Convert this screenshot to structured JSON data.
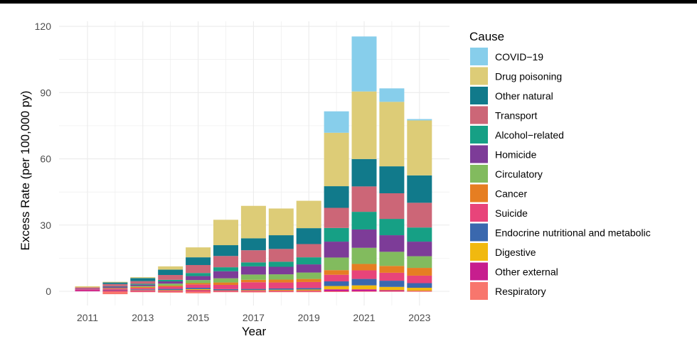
{
  "chart_data": {
    "type": "bar",
    "stacked": true,
    "title": "",
    "xlabel": "Year",
    "ylabel": "Excess Rate (per 100,000 py)",
    "ylim": [
      -4,
      122
    ],
    "yticks": [
      0,
      30,
      60,
      90,
      120
    ],
    "ytick_labels": [
      "0",
      "30",
      "60",
      "90",
      "120"
    ],
    "xlim": [
      2010.3,
      2023.9
    ],
    "xticks": [
      2011,
      2013,
      2015,
      2017,
      2019,
      2021,
      2023
    ],
    "xtick_labels": [
      "2011",
      "2013",
      "2015",
      "2017",
      "2019",
      "2021",
      "2023"
    ],
    "grid": true,
    "legend": {
      "title": "Cause",
      "position": "right"
    },
    "categories": [
      2011,
      2012,
      2013,
      2014,
      2015,
      2016,
      2017,
      2018,
      2019,
      2020,
      2021,
      2022,
      2023
    ],
    "series": [
      {
        "name": "COVID−19",
        "color": "#87CEEB",
        "values": [
          0,
          0,
          0,
          0,
          0,
          0,
          0,
          0,
          0,
          9.7,
          24.9,
          6.1,
          0.6
        ]
      },
      {
        "name": "Drug poisoning",
        "color": "#DDCC77",
        "values": [
          0.5,
          0.3,
          0.4,
          1.5,
          4.5,
          11.5,
          14.7,
          12.1,
          12.4,
          24.2,
          30.6,
          29.2,
          24.9
        ]
      },
      {
        "name": "Other natural",
        "color": "#117A8B",
        "values": [
          0,
          0.7,
          1.4,
          2.4,
          3.5,
          4.9,
          5.4,
          6.2,
          7.2,
          9.8,
          12.4,
          12.2,
          12.4
        ]
      },
      {
        "name": "Transport",
        "color": "#CC6677",
        "values": [
          0.6,
          1.0,
          1.2,
          2.2,
          3.6,
          5.1,
          5.5,
          5.8,
          6.0,
          9.1,
          11.5,
          11.6,
          11.2
        ]
      },
      {
        "name": "Alcohol−related",
        "color": "#16A085",
        "values": [
          0,
          0.2,
          0.4,
          0.7,
          1.4,
          1.8,
          1.8,
          2.3,
          3.2,
          6.2,
          8.0,
          7.4,
          6.4
        ]
      },
      {
        "name": "Homicide",
        "color": "#7D3C98",
        "values": [
          0.3,
          0.5,
          0.6,
          1.0,
          1.8,
          3.2,
          3.7,
          3.4,
          3.7,
          7.2,
          8.3,
          7.5,
          6.6
        ]
      },
      {
        "name": "Circulatory",
        "color": "#82BB5E",
        "values": [
          0,
          0.2,
          0.4,
          0.9,
          1.4,
          1.9,
          2.4,
          2.4,
          2.9,
          5.7,
          7.3,
          6.4,
          5.3
        ]
      },
      {
        "name": "Cancer",
        "color": "#E67E22",
        "values": [
          0,
          0.1,
          0.5,
          0.5,
          0.6,
          1.1,
          1.1,
          1.3,
          1.4,
          2.1,
          2.9,
          3.1,
          3.5
        ]
      },
      {
        "name": "Suicide",
        "color": "#E8447A",
        "values": [
          0.4,
          0.6,
          0.6,
          1.0,
          1.5,
          1.9,
          3.0,
          2.7,
          2.7,
          3.0,
          3.9,
          3.6,
          3.4
        ]
      },
      {
        "name": "Endocrine nutritional and metabolic",
        "color": "#3A68AE",
        "values": [
          0,
          0.1,
          0.3,
          0.5,
          0.6,
          0.5,
          0.5,
          0.6,
          0.7,
          2.1,
          2.9,
          2.8,
          2.1
        ]
      },
      {
        "name": "Digestive",
        "color": "#F1B90F",
        "values": [
          0,
          0.1,
          0.2,
          0.3,
          0.5,
          0.2,
          0.3,
          0.4,
          0.5,
          1.5,
          1.8,
          1.5,
          1.4
        ]
      },
      {
        "name": "Other external",
        "color": "#C71E8E",
        "values": [
          0.5,
          0.5,
          0.4,
          0.3,
          0.5,
          0.3,
          0.3,
          0.3,
          0.3,
          0.9,
          0.9,
          0.5,
          0.2
        ]
      },
      {
        "name": "Respiratory",
        "color": "#F8766D",
        "values": [
          0,
          -1.3,
          -0.4,
          -0.6,
          -0.9,
          -0.4,
          -0.5,
          -0.4,
          -0.4,
          -0.3,
          -0.2,
          -0.2,
          -0.2
        ]
      }
    ]
  }
}
